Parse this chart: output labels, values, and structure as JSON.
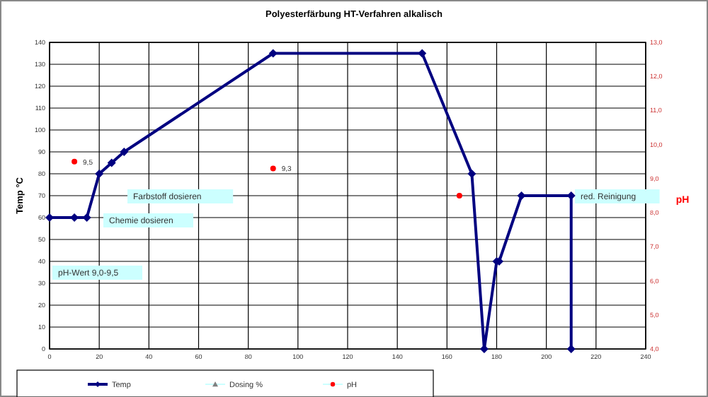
{
  "chart_data": {
    "type": "line",
    "title": "Polyesterfärbung HT-Verfahren alkalisch",
    "ylabel": "Temp °C",
    "y2label": "pH",
    "series": [
      {
        "name": "Temp",
        "color": "#000080",
        "marker": "diamond",
        "x": [
          0,
          10,
          15,
          20,
          25,
          30,
          90,
          150,
          170,
          175,
          180,
          181,
          190,
          210,
          210
        ],
        "values": [
          60,
          60,
          60,
          80,
          85,
          90,
          135,
          135,
          80,
          0,
          40,
          40,
          70,
          70,
          0
        ]
      },
      {
        "name": "Dosing %",
        "type": "scatter",
        "color": "#808080",
        "marker": "triangle"
      },
      {
        "name": "pH",
        "type": "scatter",
        "axis": "y2",
        "color": "#ff0000",
        "marker": "circle",
        "x": [
          10,
          90,
          165
        ],
        "values": [
          9.5,
          9.3,
          8.5
        ],
        "value_labels": [
          "9,5",
          "9,3",
          null
        ]
      }
    ],
    "xlim": [
      0,
      240
    ],
    "xticks": [
      0,
      20,
      40,
      60,
      80,
      100,
      120,
      140,
      160,
      180,
      200,
      220,
      240
    ],
    "ylim": [
      0,
      140
    ],
    "yticks": [
      0,
      10,
      20,
      30,
      40,
      50,
      60,
      70,
      80,
      90,
      100,
      110,
      120,
      130,
      140
    ],
    "y2lim": [
      4,
      13
    ],
    "y2ticks": [
      {
        "value": 4,
        "label": "4,0"
      },
      {
        "value": 5,
        "label": "5,0"
      },
      {
        "value": 6,
        "label": "6,0"
      },
      {
        "value": 7,
        "label": "7,0"
      },
      {
        "value": 8,
        "label": "8,0"
      },
      {
        "value": 9,
        "label": "9,0"
      },
      {
        "value": 10,
        "label": "10,0"
      },
      {
        "value": 11,
        "label": "11,0"
      },
      {
        "value": 12,
        "label": "12,0"
      },
      {
        "value": 13,
        "label": "13,0"
      }
    ],
    "grid": true,
    "legend": "bottom",
    "annotations": [
      "Farbstoff dosieren",
      "Chemie dosieren",
      "pH-Wert 9,0-9,5",
      "red. Reinigung"
    ]
  }
}
